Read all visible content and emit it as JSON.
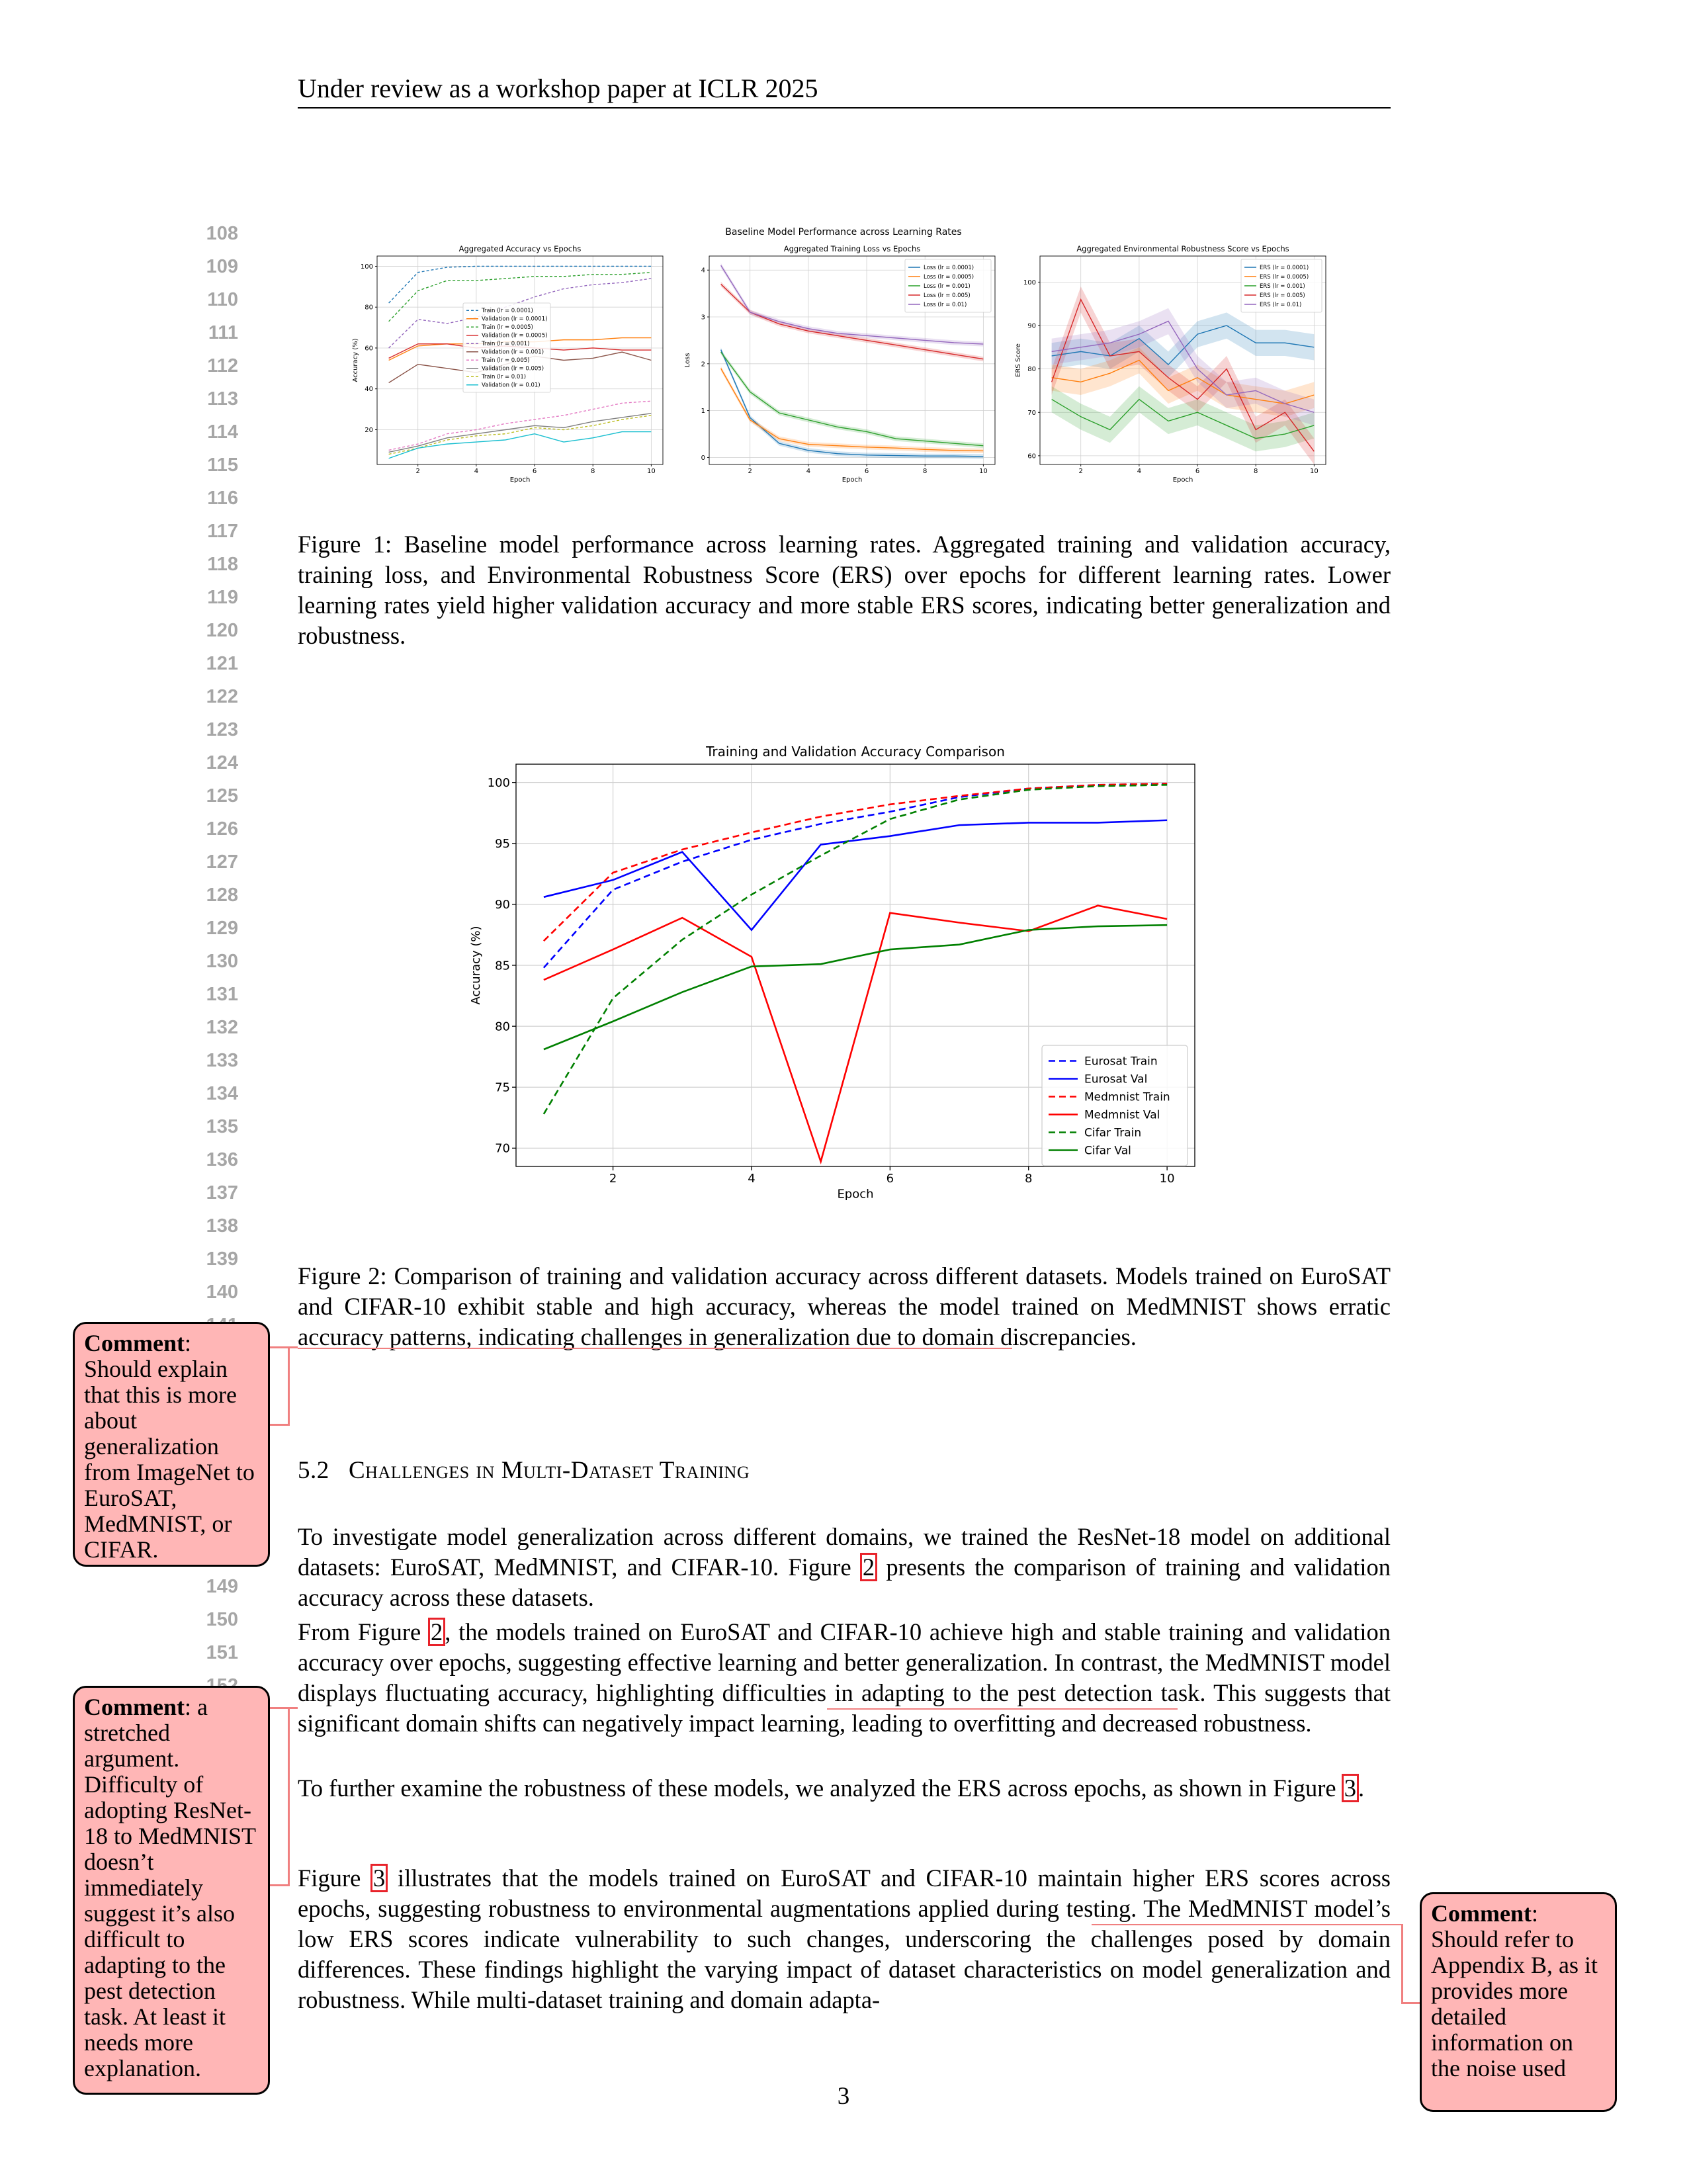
{
  "header": "Under review as a workshop paper at ICLR 2025",
  "line_numbers": [
    "108",
    "109",
    "110",
    "111",
    "112",
    "113",
    "114",
    "115",
    "116",
    "117",
    "118",
    "119",
    "120",
    "121",
    "122",
    "123",
    "124",
    "125",
    "126",
    "127",
    "128",
    "129",
    "130",
    "131",
    "132",
    "133",
    "134",
    "135",
    "136",
    "137",
    "138",
    "139",
    "140",
    "141",
    "149",
    "150",
    "151",
    "152"
  ],
  "figure1": {
    "suptitle": "Baseline Model Performance across Learning Rates",
    "caption": "Figure 1: Baseline model performance across learning rates. Aggregated training and validation accuracy, training loss, and Environmental Robustness Score (ERS) over epochs for different learning rates. Lower learning rates yield higher validation accuracy and more stable ERS scores, indicating better generalization and robustness."
  },
  "figure2": {
    "caption": "Figure 2: Comparison of training and validation accuracy across different datasets. Models trained on EuroSAT and CIFAR-10 exhibit stable and high accuracy, whereas the model trained on MedMNIST shows erratic accuracy patterns, indicating challenges in generalization due to domain discrepancies."
  },
  "section": {
    "number": "5.2",
    "title": "Challenges in Multi-Dataset Training"
  },
  "paragraphs": {
    "p1_a": "To investigate model generalization across different domains, we trained the ResNet-18 model on additional datasets: EuroSAT, MedMNIST, and CIFAR-10. Figure",
    "p1_ref": "2",
    "p1_b": "presents the comparison of training and validation accuracy across these datasets.",
    "p2_a": "From Figure",
    "p2_ref": "2",
    "p2_b": ", the models trained on EuroSAT and CIFAR-10 achieve high and stable training and validation accuracy over epochs, suggesting effective learning and better generalization. In contrast, the MedMNIST model displays fluctuating accuracy, highlighting difficulties in adapting to the pest detection task. This suggests that significant domain shifts can negatively impact learning, leading to overfitting and decreased robustness.",
    "p3_a": "To further examine the robustness of these models, we analyzed the ERS across epochs, as shown in Figure",
    "p3_ref": "3",
    "p3_b": ".",
    "p4_a": "Figure",
    "p4_ref": "3",
    "p4_b": "illustrates that the models trained on EuroSAT and CIFAR-10 maintain higher ERS scores across epochs, suggesting robustness to environmental augmentations applied during testing. The MedMNIST model’s low ERS scores indicate vulnerability to such changes, underscoring the challenges posed by domain differences. These findings highlight the varying impact of dataset characteristics on model generalization and robustness. While multi-dataset training and domain adapta-"
  },
  "page_number": "3",
  "comments": [
    {
      "label": "Comment",
      "text": "Should explain that this is more about generalization from ImageNet to EuroSAT, MedMNIST, or CIFAR."
    },
    {
      "label": "Comment",
      "text": "a stretched argument. Difficulty of adopting ResNet-18 to MedMNIST doesn’t immediately suggest it’s also difficult to adapting to the pest detection task. At least it needs more explanation."
    },
    {
      "label": "Comment",
      "text": "Should refer to Appendix B, as it provides more detailed information on the noise used"
    }
  ],
  "chart_data": [
    {
      "type": "line",
      "title": "Aggregated Accuracy vs Epochs",
      "xlabel": "Epoch",
      "ylabel": "Accuracy (%)",
      "xlim": [
        0.6,
        10.4
      ],
      "ylim": [
        3,
        105
      ],
      "xticks": [
        2,
        4,
        6,
        8,
        10
      ],
      "yticks": [
        20,
        40,
        60,
        80,
        100
      ],
      "grid": true,
      "legend": "center",
      "x": [
        1,
        2,
        3,
        4,
        5,
        6,
        7,
        8,
        9,
        10
      ],
      "series": [
        {
          "name": "Train (lr = 0.0001)",
          "color": "#1f77b4",
          "dash": true,
          "values": [
            82,
            97,
            99.5,
            100,
            100,
            100,
            100,
            100,
            100,
            100
          ]
        },
        {
          "name": "Validation (lr = 0.0001)",
          "color": "#ff7f0e",
          "dash": false,
          "values": [
            54,
            61,
            62,
            62,
            63,
            63,
            64,
            64,
            65,
            65
          ]
        },
        {
          "name": "Train (lr = 0.0005)",
          "color": "#2ca02c",
          "dash": true,
          "values": [
            73,
            88,
            93,
            93,
            94,
            95,
            95,
            96,
            96,
            97
          ]
        },
        {
          "name": "Validation (lr = 0.0005)",
          "color": "#d62728",
          "dash": false,
          "values": [
            55,
            62,
            62,
            60,
            61,
            60,
            59,
            60,
            59,
            59
          ]
        },
        {
          "name": "Train (lr = 0.001)",
          "color": "#9467bd",
          "dash": true,
          "values": [
            60,
            74,
            72,
            75,
            80,
            85,
            89,
            91,
            92,
            94
          ]
        },
        {
          "name": "Validation (lr = 0.001)",
          "color": "#8c564b",
          "dash": false,
          "values": [
            43,
            52,
            50,
            48,
            52,
            56,
            54,
            55,
            58,
            54
          ]
        },
        {
          "name": "Train (lr = 0.005)",
          "color": "#e377c2",
          "dash": true,
          "values": [
            10,
            13,
            18,
            20,
            23,
            25,
            27,
            30,
            33,
            34
          ]
        },
        {
          "name": "Validation (lr = 0.005)",
          "color": "#7f7f7f",
          "dash": false,
          "values": [
            9,
            12,
            16,
            18,
            20,
            22,
            21,
            24,
            26,
            28
          ]
        },
        {
          "name": "Train (lr = 0.01)",
          "color": "#bcbd22",
          "dash": true,
          "values": [
            8,
            11,
            15,
            17,
            18,
            21,
            20,
            22,
            25,
            27
          ]
        },
        {
          "name": "Validation (lr = 0.01)",
          "color": "#17becf",
          "dash": false,
          "values": [
            6,
            11,
            13,
            14,
            15,
            18,
            14,
            16,
            19,
            19
          ]
        }
      ]
    },
    {
      "type": "line",
      "title": "Aggregated Training Loss vs Epochs",
      "xlabel": "Epoch",
      "ylabel": "Loss",
      "xlim": [
        0.6,
        10.4
      ],
      "ylim": [
        -0.15,
        4.3
      ],
      "xticks": [
        2,
        4,
        6,
        8,
        10
      ],
      "yticks": [
        0,
        1,
        2,
        3,
        4
      ],
      "grid": true,
      "legend": "top-right",
      "x": [
        1,
        2,
        3,
        4,
        5,
        6,
        7,
        8,
        9,
        10
      ],
      "series": [
        {
          "name": "Loss (lr = 0.0001)",
          "color": "#1f77b4",
          "values": [
            2.3,
            0.85,
            0.3,
            0.15,
            0.08,
            0.05,
            0.04,
            0.03,
            0.03,
            0.02
          ]
        },
        {
          "name": "Loss (lr = 0.0005)",
          "color": "#ff7f0e",
          "values": [
            1.9,
            0.8,
            0.4,
            0.28,
            0.25,
            0.22,
            0.2,
            0.17,
            0.15,
            0.14
          ]
        },
        {
          "name": "Loss (lr = 0.001)",
          "color": "#2ca02c",
          "values": [
            2.25,
            1.4,
            0.95,
            0.8,
            0.65,
            0.55,
            0.4,
            0.35,
            0.3,
            0.25
          ]
        },
        {
          "name": "Loss (lr = 0.005)",
          "color": "#d62728",
          "values": [
            3.7,
            3.1,
            2.85,
            2.7,
            2.6,
            2.5,
            2.4,
            2.3,
            2.2,
            2.1
          ]
        },
        {
          "name": "Loss (lr = 0.01)",
          "color": "#9467bd",
          "values": [
            4.1,
            3.1,
            2.9,
            2.75,
            2.65,
            2.6,
            2.55,
            2.5,
            2.45,
            2.42
          ]
        }
      ]
    },
    {
      "type": "line",
      "title": "Aggregated Environmental Robustness Score vs Epochs",
      "xlabel": "Epoch",
      "ylabel": "ERS Score",
      "xlim": [
        0.6,
        10.4
      ],
      "ylim": [
        58,
        106
      ],
      "xticks": [
        2,
        4,
        6,
        8,
        10
      ],
      "yticks": [
        60,
        70,
        80,
        90,
        100
      ],
      "grid": true,
      "legend": "top-right",
      "x": [
        1,
        2,
        3,
        4,
        5,
        6,
        7,
        8,
        9,
        10
      ],
      "series": [
        {
          "name": "ERS (lr = 0.0001)",
          "color": "#1f77b4",
          "values": [
            83,
            84,
            83,
            87,
            81,
            88,
            90,
            86,
            86,
            85
          ]
        },
        {
          "name": "ERS (lr = 0.0005)",
          "color": "#ff7f0e",
          "values": [
            78,
            77,
            79,
            82,
            75,
            78,
            74,
            73,
            72,
            74
          ]
        },
        {
          "name": "ERS (lr = 0.001)",
          "color": "#2ca02c",
          "values": [
            73,
            69,
            66,
            73,
            68,
            70,
            67,
            64,
            65,
            67
          ]
        },
        {
          "name": "ERS (lr = 0.005)",
          "color": "#d62728",
          "values": [
            77,
            96,
            83,
            84,
            78,
            73,
            80,
            66,
            70,
            61
          ]
        },
        {
          "name": "ERS (lr = 0.01)",
          "color": "#9467bd",
          "values": [
            84,
            85,
            86,
            88,
            91,
            80,
            74,
            75,
            72,
            70
          ]
        }
      ]
    },
    {
      "type": "line",
      "title": "Training and Validation Accuracy Comparison",
      "xlabel": "Epoch",
      "ylabel": "Accuracy (%)",
      "xlim": [
        0.6,
        10.4
      ],
      "ylim": [
        68.5,
        101.5
      ],
      "xticks": [
        2,
        4,
        6,
        8,
        10
      ],
      "yticks": [
        70,
        75,
        80,
        85,
        90,
        95,
        100
      ],
      "grid": true,
      "legend": "bottom-right",
      "x": [
        1,
        2,
        3,
        4,
        5,
        6,
        7,
        8,
        9,
        10
      ],
      "series": [
        {
          "name": "Eurosat Train",
          "color": "#0000ff",
          "dash": true,
          "values": [
            84.8,
            91.2,
            93.5,
            95.3,
            96.6,
            97.6,
            98.8,
            99.5,
            99.8,
            99.9
          ]
        },
        {
          "name": "Eurosat Val",
          "color": "#0000ff",
          "dash": false,
          "values": [
            90.6,
            92.0,
            94.3,
            87.9,
            94.9,
            95.6,
            96.5,
            96.7,
            96.7,
            96.9
          ]
        },
        {
          "name": "Medmnist Train",
          "color": "#ff0000",
          "dash": true,
          "values": [
            87.0,
            92.6,
            94.5,
            95.9,
            97.2,
            98.2,
            98.9,
            99.5,
            99.8,
            99.9
          ]
        },
        {
          "name": "Medmnist Val",
          "color": "#ff0000",
          "dash": false,
          "values": [
            83.8,
            86.3,
            88.9,
            85.7,
            68.9,
            89.3,
            88.5,
            87.8,
            89.9,
            88.8
          ]
        },
        {
          "name": "Cifar Train",
          "color": "#008000",
          "dash": true,
          "values": [
            72.8,
            82.3,
            87.1,
            90.8,
            94.0,
            97.0,
            98.6,
            99.4,
            99.7,
            99.8
          ]
        },
        {
          "name": "Cifar Val",
          "color": "#008000",
          "dash": false,
          "values": [
            78.1,
            80.4,
            82.8,
            84.9,
            85.1,
            86.3,
            86.7,
            87.9,
            88.2,
            88.3
          ]
        }
      ]
    }
  ]
}
